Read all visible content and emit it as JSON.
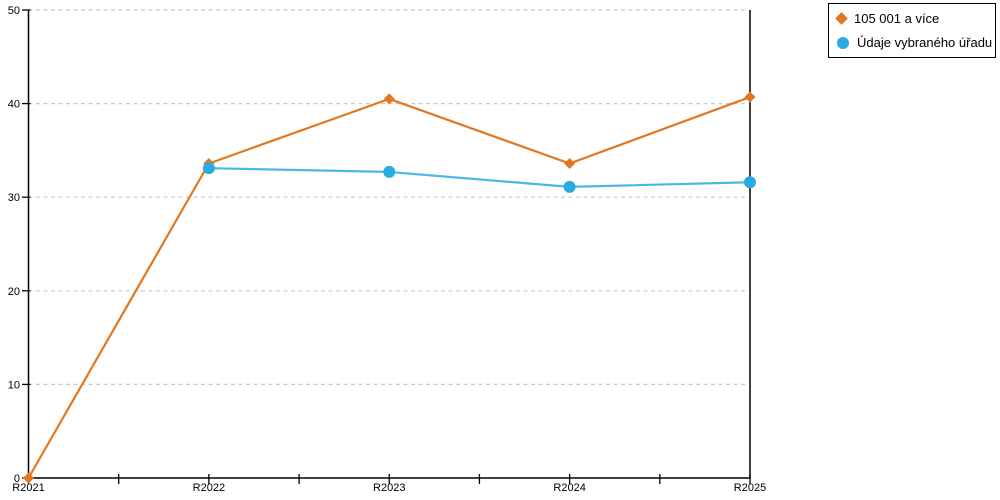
{
  "chart_data": {
    "type": "line",
    "title": "",
    "xlabel": "",
    "ylabel": "",
    "categories": [
      "R2021",
      "R2022",
      "R2023",
      "R2024",
      "R2025"
    ],
    "series": [
      {
        "name": "105 001 a více",
        "marker": "diamond",
        "color": "#E2771F",
        "values": [
          0,
          33.6,
          40.5,
          33.6,
          40.7
        ]
      },
      {
        "name": "Údaje vybraného úřadu",
        "marker": "circle",
        "color": "#29ABE2",
        "values": [
          null,
          33.1,
          32.7,
          31.1,
          31.6
        ]
      }
    ],
    "ylim": [
      0,
      50
    ],
    "yticks": [
      0,
      10,
      20,
      30,
      40,
      50
    ],
    "grid": "horizontal-dashed",
    "gridline_color": "#c8c8c8",
    "axis_color": "#000000",
    "plot_right_border": true,
    "legend_position": "top-right"
  }
}
